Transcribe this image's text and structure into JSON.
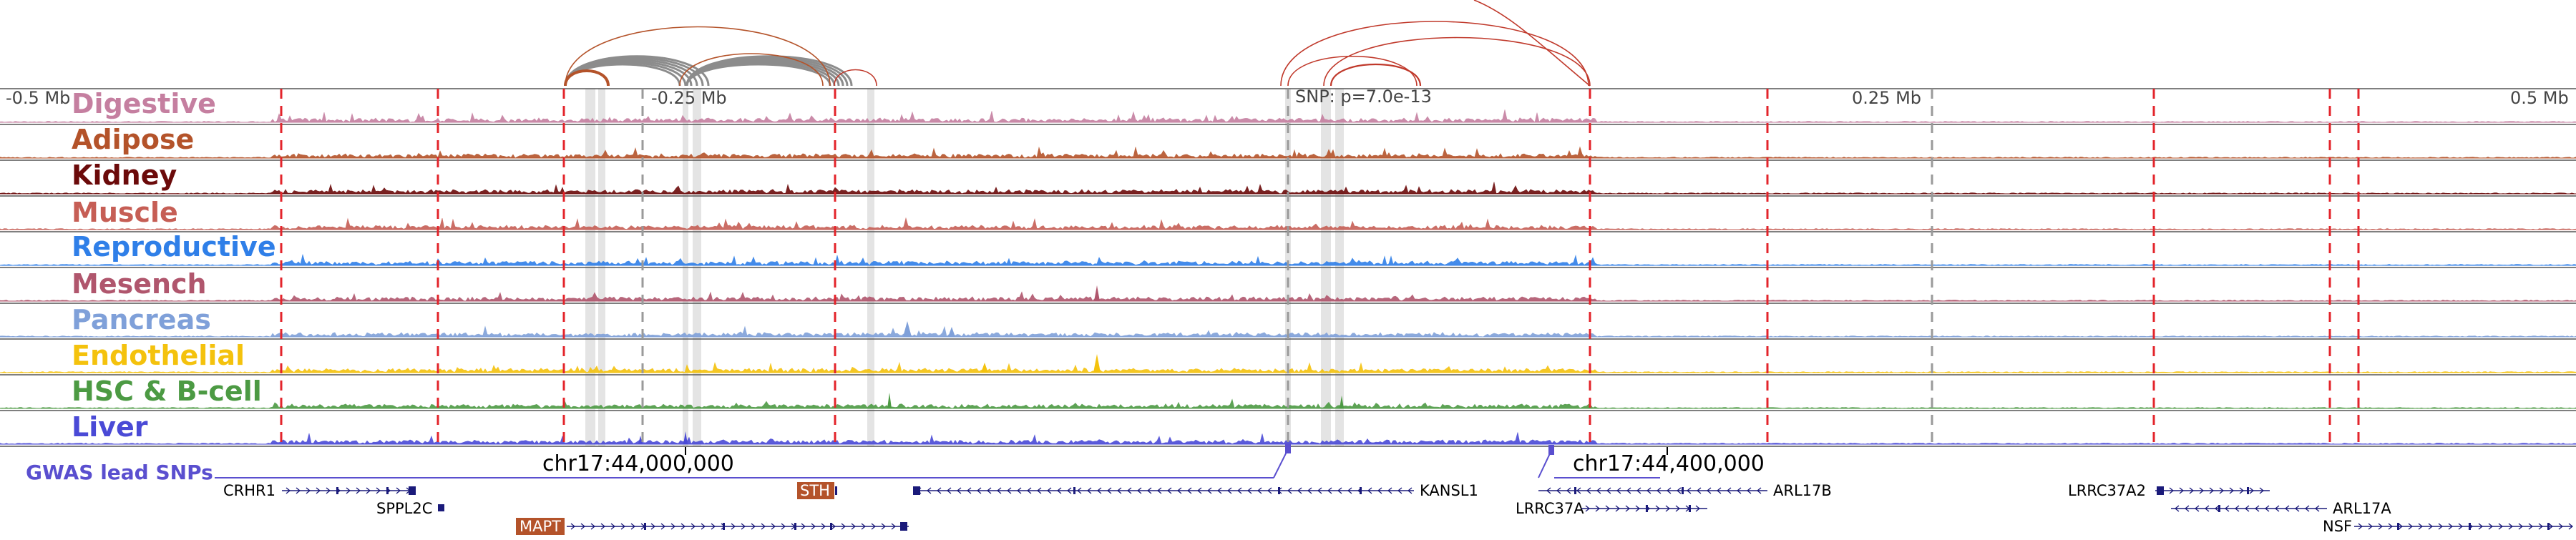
{
  "axis": {
    "left_label": "-0.5 Mb",
    "minus_quarter_label": "-0.25 Mb",
    "snp_label": "SNP: p=7.0e-13",
    "plus_quarter_label": "0.25 Mb",
    "right_label": "0.5 Mb"
  },
  "tracks": [
    {
      "label": "Digestive",
      "color": "#c57fa0"
    },
    {
      "label": "Adipose",
      "color": "#b4532a"
    },
    {
      "label": "Kidney",
      "color": "#6b0a0a"
    },
    {
      "label": "Muscle",
      "color": "#c65e55"
    },
    {
      "label": "Reproductive",
      "color": "#2f7fe8"
    },
    {
      "label": "Mesench",
      "color": "#b0566d"
    },
    {
      "label": "Pancreas",
      "color": "#7fa0d9"
    },
    {
      "label": "Endothelial",
      "color": "#f4c20d"
    },
    {
      "label": "HSC & B-cell",
      "color": "#4c9a43"
    },
    {
      "label": "Liver",
      "color": "#4a4ad6"
    }
  ],
  "coordinates": {
    "left": "chr17:44,000,000",
    "right": "chr17:44,400,000"
  },
  "gwas": {
    "label": "GWAS lead SNPs",
    "color": "#5a4fcf"
  },
  "genes": {
    "crhr1": "CRHR1",
    "sppl2c": "SPPL2C",
    "mapt": "MAPT",
    "sth": "STH",
    "kansl1": "KANSL1",
    "lrrc37a": "LRRC37A",
    "arl17b": "ARL17B",
    "lrrc37a2": "LRRC37A2",
    "arl17a": "ARL17A",
    "nsf": "NSF"
  },
  "colors": {
    "boundary_red": "#e3242b",
    "boundary_gray": "#9a9a9a",
    "loop_gray": "#8c8c8c",
    "loop_orange": "#b4532a",
    "loop_red": "#c0392b",
    "gene_navy": "#1a1a7a",
    "highlight": "#d9d9d9"
  }
}
